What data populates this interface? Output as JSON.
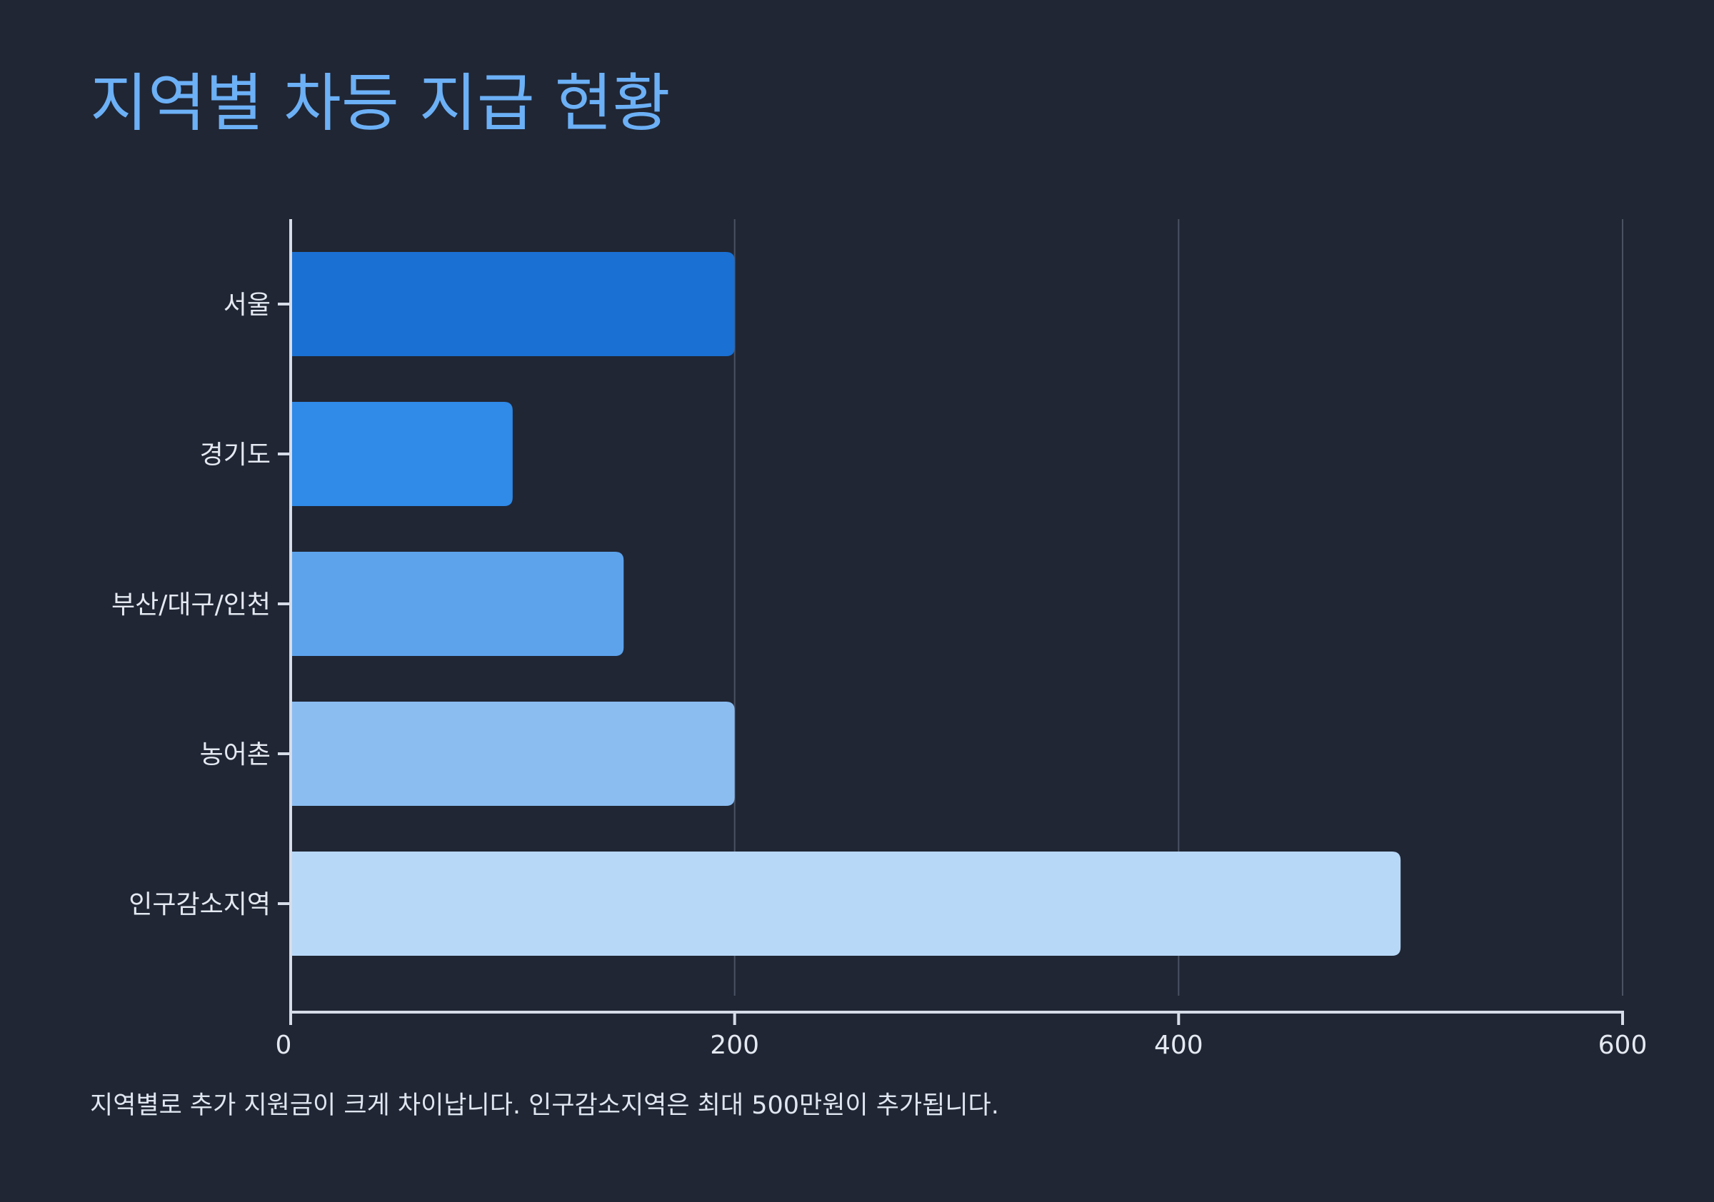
{
  "title": "지역별 차등 지급 현황",
  "footnote": "지역별로 추가 지원금이 크게 차이납니다. 인구감소지역은 최대 500만원이 추가됩니다.",
  "colors": {
    "background": "#202634",
    "title": "#6cb0f6",
    "axis": "#d6dde8",
    "grid": "#4a5262",
    "bars": [
      "#1a70d3",
      "#2f8ae8",
      "#5da3ec",
      "#8bbdf1",
      "#b8d8f7"
    ]
  },
  "chart_data": {
    "type": "bar",
    "orientation": "horizontal",
    "title": "지역별 차등 지급 현황",
    "xlabel": "",
    "ylabel": "",
    "categories": [
      "서울",
      "경기도",
      "부산/대구/인천",
      "농어촌",
      "인구감소지역"
    ],
    "values": [
      200,
      100,
      150,
      200,
      500
    ],
    "xlim": [
      0,
      600
    ],
    "xticks": [
      0,
      200,
      400,
      600
    ],
    "grid": "vertical",
    "legend": "none"
  }
}
